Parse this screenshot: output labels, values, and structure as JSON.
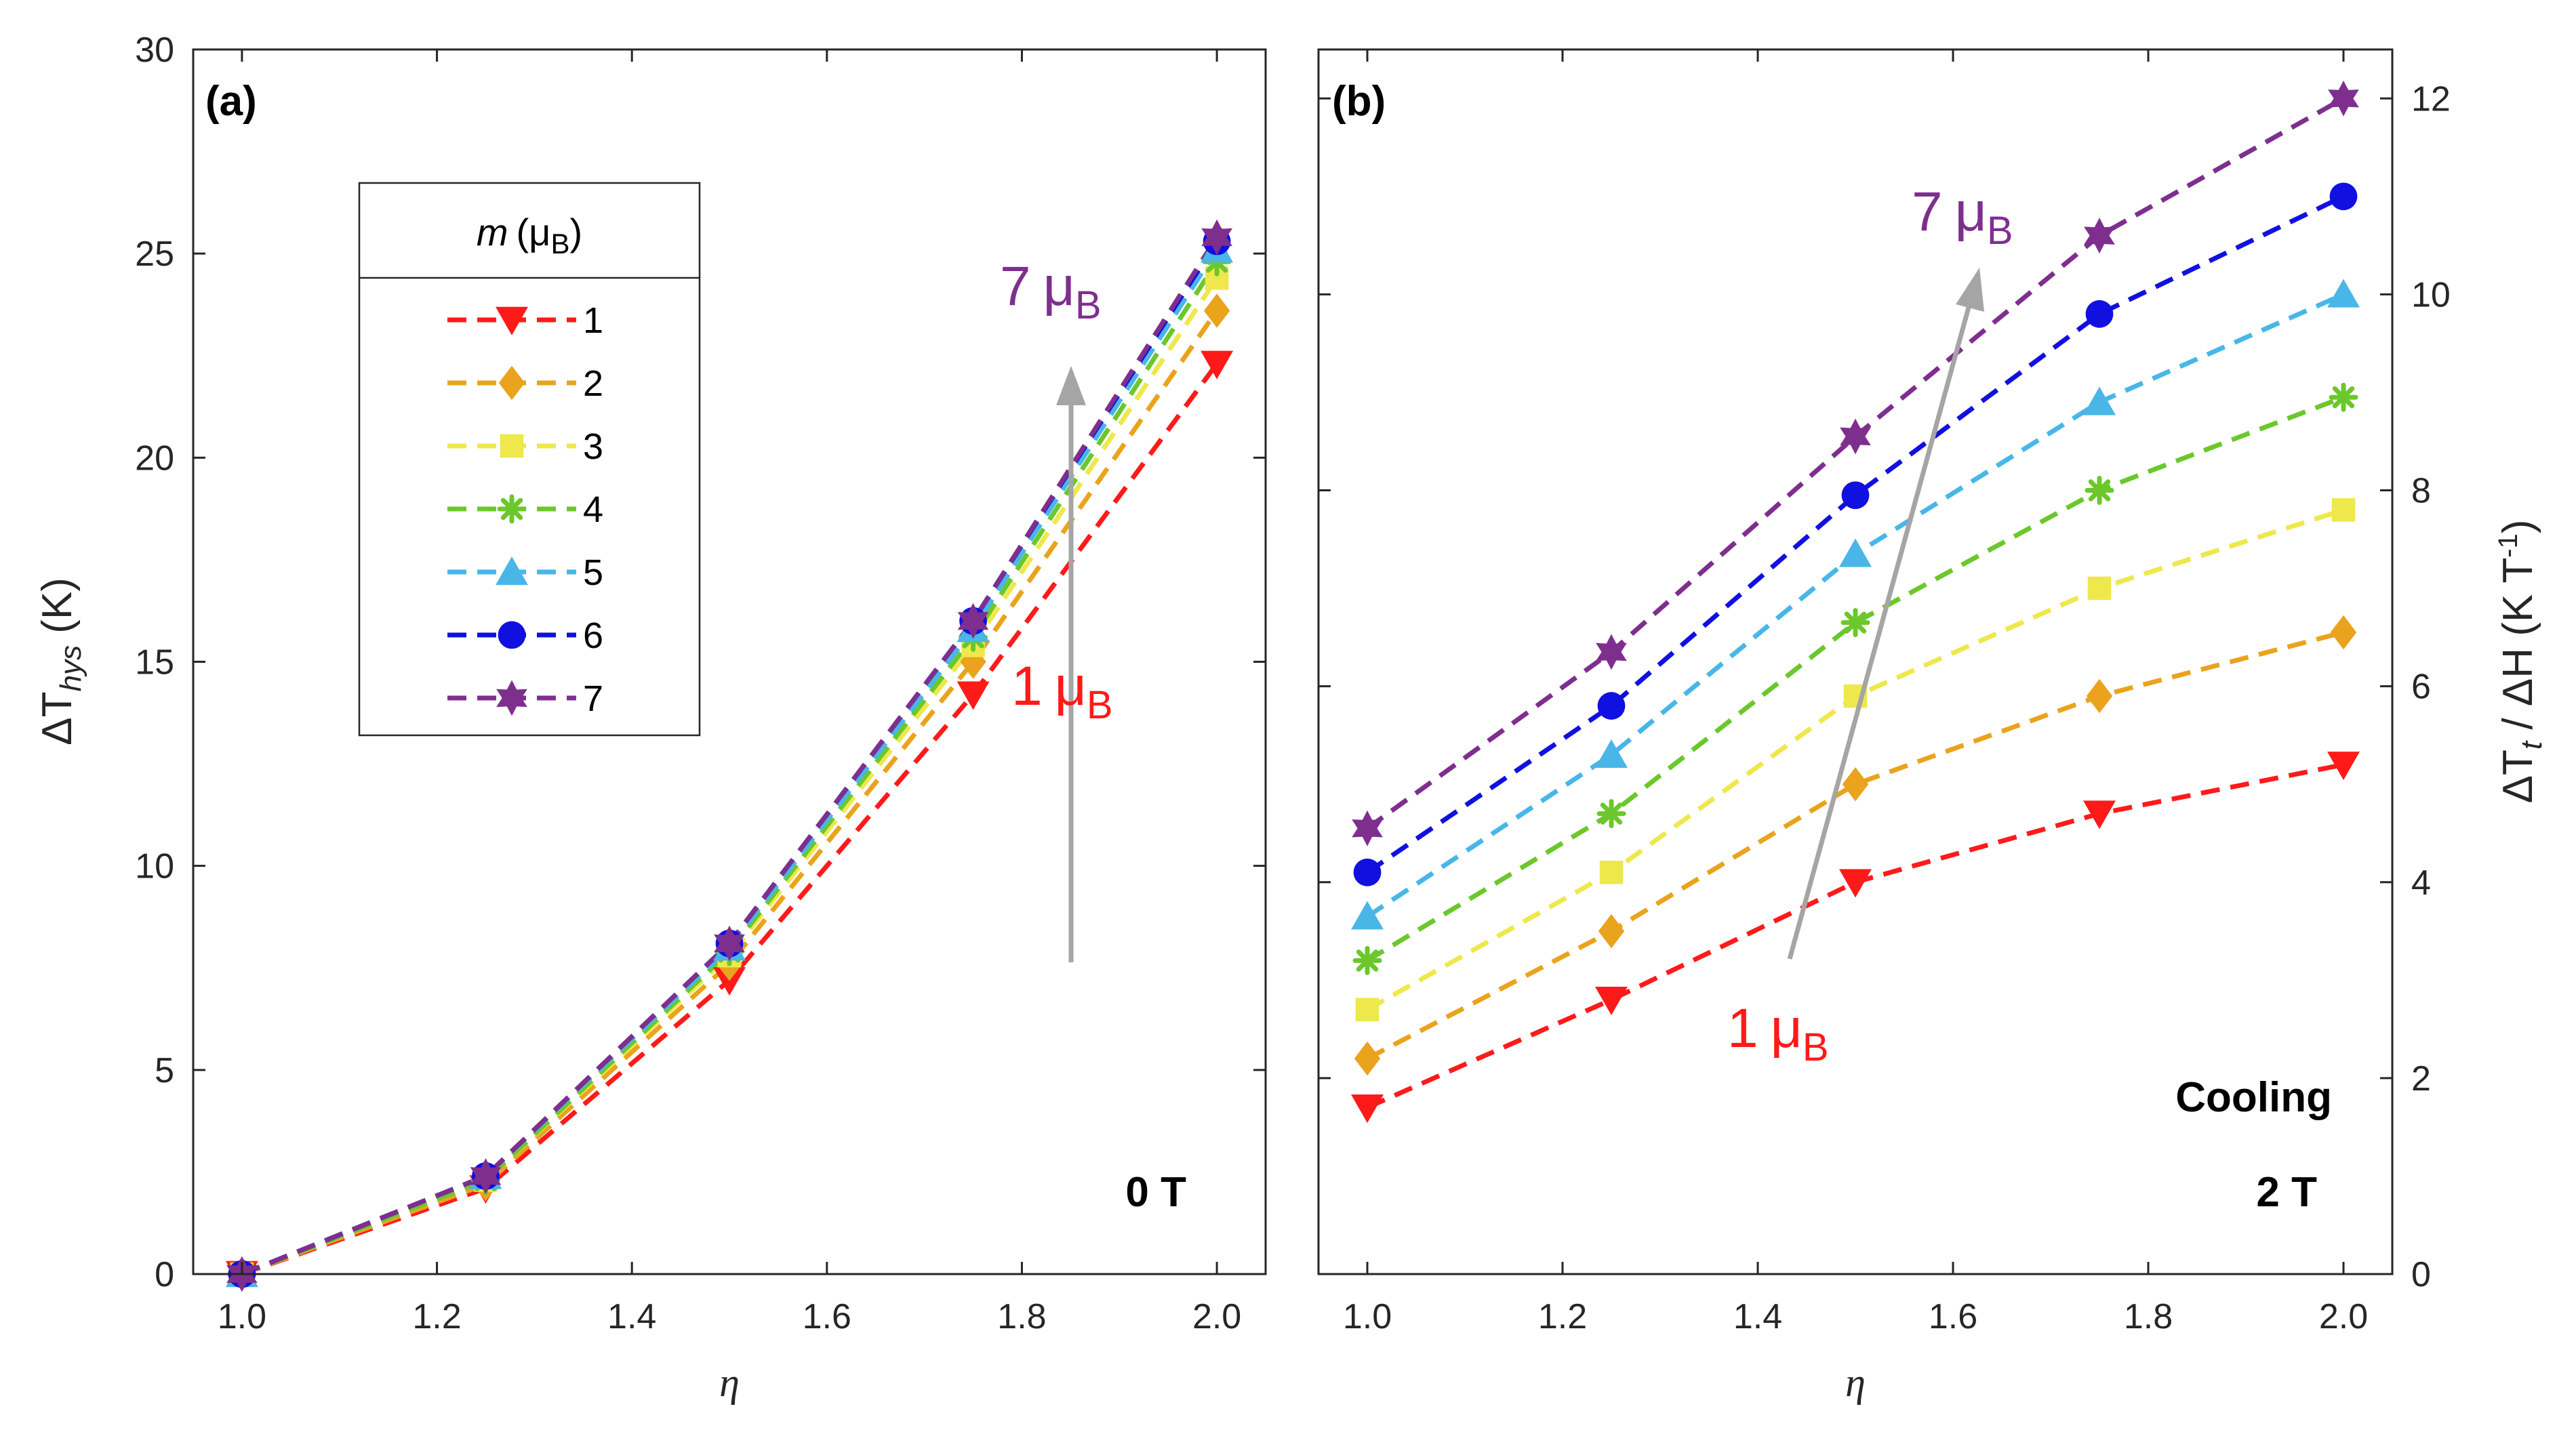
{
  "colors": {
    "1": "#ff1a1a",
    "2": "#eaa31c",
    "3": "#eee84c",
    "4": "#6cc72c",
    "5": "#49b6e8",
    "6": "#1010e0",
    "7": "#7e2f8e",
    "arrow": "#a5a5a5",
    "axis": "#262626"
  },
  "legend": {
    "title_prefix": "m",
    "title_unit": "(μ",
    "title_sub": "B",
    "title_close": ")",
    "entries": [
      {
        "label": "1",
        "marker": "triangle-down",
        "color_key": "1"
      },
      {
        "label": "2",
        "marker": "diamond",
        "color_key": "2"
      },
      {
        "label": "3",
        "marker": "square",
        "color_key": "3"
      },
      {
        "label": "4",
        "marker": "asterisk",
        "color_key": "4"
      },
      {
        "label": "5",
        "marker": "triangle-up",
        "color_key": "5"
      },
      {
        "label": "6",
        "marker": "circle",
        "color_key": "6"
      },
      {
        "label": "7",
        "marker": "hexagram",
        "color_key": "7"
      }
    ]
  },
  "chart_data": [
    {
      "type": "line",
      "panel_label": "(a)",
      "condition": "0 T",
      "xlabel": "η",
      "ylabel_main": "ΔT",
      "ylabel_sub": "hys",
      "ylabel_unit": " (K)",
      "xlim": [
        0.95,
        2.05
      ],
      "ylim": [
        0,
        30
      ],
      "xticks": [
        "1.0",
        "1.2",
        "1.4",
        "1.6",
        "1.8",
        "2.0"
      ],
      "yticks": [
        "0",
        "5",
        "10",
        "15",
        "20",
        "25",
        "30"
      ],
      "x": [
        1.0,
        1.25,
        1.5,
        1.75,
        2.0
      ],
      "series": [
        {
          "name": "1",
          "values": [
            0,
            2.1,
            7.2,
            14.2,
            22.3
          ]
        },
        {
          "name": "2",
          "values": [
            0,
            2.2,
            7.6,
            15.0,
            23.6
          ]
        },
        {
          "name": "3",
          "values": [
            0,
            2.3,
            7.8,
            15.4,
            24.4
          ]
        },
        {
          "name": "4",
          "values": [
            0,
            2.3,
            7.9,
            15.6,
            24.8
          ]
        },
        {
          "name": "5",
          "values": [
            0,
            2.4,
            8.0,
            15.8,
            25.1
          ]
        },
        {
          "name": "6",
          "values": [
            0,
            2.4,
            8.1,
            16.0,
            25.3
          ]
        },
        {
          "name": "7",
          "values": [
            0,
            2.4,
            8.1,
            16.0,
            25.4
          ]
        }
      ],
      "annotation_top": {
        "number": "7",
        "mu": "μ",
        "sub": "B"
      },
      "annotation_bottom": {
        "number": "1",
        "mu": "μ",
        "sub": "B"
      }
    },
    {
      "type": "line",
      "panel_label": "(b)",
      "condition_line1": "Cooling",
      "condition_line2": "2 T",
      "xlabel": "η",
      "ylabel_main": "ΔT",
      "ylabel_sub": "t",
      "ylabel_mid": " / ΔH",
      "ylabel_unit": "  (K T",
      "ylabel_sup": "-1",
      "ylabel_close": ")",
      "xlim": [
        0.95,
        2.05
      ],
      "ylim": [
        0,
        12.5
      ],
      "xticks": [
        "1.0",
        "1.2",
        "1.4",
        "1.6",
        "1.8",
        "2.0"
      ],
      "yticks": [
        "0",
        "2",
        "4",
        "6",
        "8",
        "10",
        "12"
      ],
      "x": [
        1.0,
        1.25,
        1.5,
        1.75,
        2.0
      ],
      "series": [
        {
          "name": "1",
          "values": [
            1.7,
            2.8,
            4.0,
            4.7,
            5.2
          ]
        },
        {
          "name": "2",
          "values": [
            2.2,
            3.5,
            5.0,
            5.9,
            6.55
          ]
        },
        {
          "name": "3",
          "values": [
            2.7,
            4.1,
            5.9,
            7.0,
            7.8
          ]
        },
        {
          "name": "4",
          "values": [
            3.2,
            4.7,
            6.65,
            8.0,
            8.95
          ]
        },
        {
          "name": "5",
          "values": [
            3.65,
            5.3,
            7.35,
            8.9,
            10.0
          ]
        },
        {
          "name": "6",
          "values": [
            4.1,
            5.8,
            7.95,
            9.8,
            11.0
          ]
        },
        {
          "name": "7",
          "values": [
            4.55,
            6.35,
            8.55,
            10.6,
            12.0
          ]
        }
      ],
      "annotation_top": {
        "number": "7",
        "mu": "μ",
        "sub": "B"
      },
      "annotation_bottom": {
        "number": "1",
        "mu": "μ",
        "sub": "B"
      }
    }
  ]
}
